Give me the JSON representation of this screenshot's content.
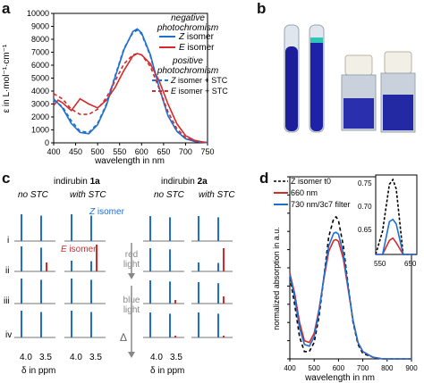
{
  "panels": {
    "a": {
      "label": "a"
    },
    "b": {
      "label": "b"
    },
    "c": {
      "label": "c"
    },
    "d": {
      "label": "d"
    }
  },
  "panel_a": {
    "xlabel": "wavelength in nm",
    "ylabel": "ε in L·mol⁻¹·cm⁻¹",
    "legend_neg_title_1": "negative",
    "legend_neg_title_2": "photochromism",
    "legend_pos_title_1": "positive",
    "legend_pos_title_2": "photochromism",
    "legend_z_prefix": "Z",
    "legend_z_suffix": " isomer",
    "legend_e_prefix": "E",
    "legend_e_suffix": " isomer",
    "legend_zstc_prefix": "Z",
    "legend_zstc_suffix": " isomer + STC",
    "legend_estc_prefix": "E",
    "legend_estc_suffix": " isomer + STC"
  },
  "panel_c": {
    "title_1a_prefix": "indirubin ",
    "title_1a_bold": "1a",
    "title_2a_prefix": "indirubin ",
    "title_2a_bold": "2a",
    "no_stc": "no  STC",
    "with_stc": "with STC",
    "z_isomer_prefix": "Z",
    "z_isomer_suffix": " isomer",
    "e_isomer_prefix": "E",
    "e_isomer_suffix": " isomer",
    "red_light_1": "red",
    "red_light_2": "light",
    "blue_light_1": "blue",
    "blue_light_2": "light",
    "delta": "Δ",
    "rows": [
      "i",
      "ii",
      "iii",
      "iv"
    ],
    "tick_40": "4.0",
    "tick_35": "3.5",
    "ppm_label": "δ in ppm"
  },
  "panel_d": {
    "legend_z_t0": "Z isomer t0",
    "legend_660": "660 nm",
    "legend_730": "730 nm/3c7 filter",
    "ylabel": "normalized absorption in a.u.",
    "xlabel": "wavelength in nm",
    "inset_yticks": [
      "0.75",
      "0.70",
      "0.65"
    ],
    "inset_xticks": [
      "550",
      "650"
    ]
  },
  "chart_data": [
    {
      "type": "line",
      "title": "",
      "xlabel": "wavelength in nm",
      "ylabel": "ε in L·mol⁻¹·cm⁻¹",
      "xlim": [
        400,
        750
      ],
      "ylim": [
        0,
        10000
      ],
      "xticks": [
        400,
        450,
        500,
        550,
        600,
        650,
        700,
        750
      ],
      "yticks": [
        0,
        1000,
        2000,
        3000,
        4000,
        5000,
        6000,
        7000,
        8000,
        9000,
        10000
      ],
      "colors": {
        "z": "#1f6fd1",
        "e": "#d42a2a"
      },
      "series": [
        {
          "name": "Z isomer",
          "style": "solid",
          "color": "#1f6fd1",
          "x": [
            400,
            420,
            440,
            460,
            480,
            500,
            520,
            540,
            560,
            580,
            590,
            600,
            620,
            640,
            660,
            680,
            700,
            720,
            740,
            750
          ],
          "y": [
            3400,
            2700,
            1500,
            800,
            700,
            1400,
            2900,
            5100,
            7200,
            8600,
            8800,
            8500,
            6800,
            4300,
            2100,
            900,
            320,
            120,
            40,
            20
          ]
        },
        {
          "name": "E isomer",
          "style": "solid",
          "color": "#d42a2a",
          "x": [
            400,
            410,
            420,
            440,
            460,
            480,
            500,
            520,
            540,
            560,
            580,
            590,
            600,
            620,
            640,
            660,
            680,
            700,
            720,
            740,
            750
          ],
          "y": [
            2900,
            3300,
            3100,
            2500,
            3400,
            3000,
            2700,
            3300,
            4300,
            5600,
            6700,
            6900,
            6800,
            6100,
            4800,
            3000,
            1500,
            560,
            200,
            60,
            30
          ]
        },
        {
          "name": "Z isomer + STC",
          "style": "dashed",
          "color": "#1f6fd1",
          "x": [
            400,
            420,
            440,
            460,
            480,
            500,
            520,
            540,
            560,
            580,
            590,
            600,
            620,
            640,
            660,
            680,
            700,
            720,
            740,
            750
          ],
          "y": [
            3300,
            2800,
            1700,
            900,
            800,
            1500,
            3000,
            5200,
            7300,
            8500,
            8700,
            8400,
            6700,
            4200,
            2100,
            900,
            320,
            120,
            40,
            20
          ]
        },
        {
          "name": "E isomer + STC",
          "style": "dashed",
          "color": "#d42a2a",
          "x": [
            400,
            420,
            440,
            460,
            480,
            500,
            520,
            540,
            560,
            580,
            590,
            600,
            620,
            640,
            660,
            680,
            700,
            720,
            740,
            750
          ],
          "y": [
            3800,
            3400,
            2600,
            2200,
            2200,
            2600,
            3500,
            4800,
            6100,
            6800,
            6900,
            6800,
            5900,
            4200,
            2400,
            1100,
            400,
            150,
            50,
            20
          ]
        }
      ]
    },
    {
      "type": "line",
      "title": "",
      "xlabel": "wavelength in nm",
      "ylabel": "normalized absorption in a.u.",
      "xlim": [
        400,
        900
      ],
      "ylim": [
        0,
        1.0
      ],
      "xticks": [
        400,
        500,
        600,
        700,
        800,
        900
      ],
      "yticks": [
        0,
        0.1,
        0.2,
        0.3,
        0.4,
        0.5,
        0.6,
        0.7,
        0.8,
        0.9,
        1.0
      ],
      "series": [
        {
          "name": "Z isomer t0",
          "style": "dashed",
          "color": "#000000",
          "x": [
            400,
            420,
            440,
            460,
            480,
            500,
            520,
            540,
            560,
            580,
            590,
            600,
            620,
            640,
            660,
            680,
            700,
            740,
            780,
            820,
            860,
            900
          ],
          "y": [
            0.45,
            0.3,
            0.12,
            0.04,
            0.04,
            0.09,
            0.23,
            0.45,
            0.67,
            0.77,
            0.78,
            0.76,
            0.62,
            0.4,
            0.2,
            0.08,
            0.03,
            0.01,
            0,
            0,
            0,
            0
          ]
        },
        {
          "name": "660 nm",
          "style": "solid",
          "color": "#d42a2a",
          "x": [
            400,
            420,
            440,
            460,
            480,
            500,
            520,
            540,
            560,
            580,
            590,
            600,
            620,
            640,
            660,
            680,
            700,
            740,
            780,
            820,
            860,
            900
          ],
          "y": [
            0.47,
            0.36,
            0.2,
            0.1,
            0.09,
            0.14,
            0.27,
            0.44,
            0.59,
            0.65,
            0.655,
            0.645,
            0.55,
            0.38,
            0.21,
            0.09,
            0.04,
            0.01,
            0,
            0,
            0,
            0
          ]
        },
        {
          "name": "730 nm/3c7 filter",
          "style": "solid",
          "color": "#1f6fd1",
          "x": [
            400,
            420,
            440,
            460,
            480,
            500,
            520,
            540,
            560,
            580,
            590,
            600,
            620,
            640,
            660,
            680,
            700,
            740,
            780,
            820,
            860,
            900
          ],
          "y": [
            0.46,
            0.34,
            0.17,
            0.08,
            0.07,
            0.12,
            0.26,
            0.45,
            0.62,
            0.69,
            0.695,
            0.685,
            0.58,
            0.39,
            0.21,
            0.09,
            0.04,
            0.01,
            0,
            0,
            0,
            0
          ]
        }
      ]
    }
  ]
}
